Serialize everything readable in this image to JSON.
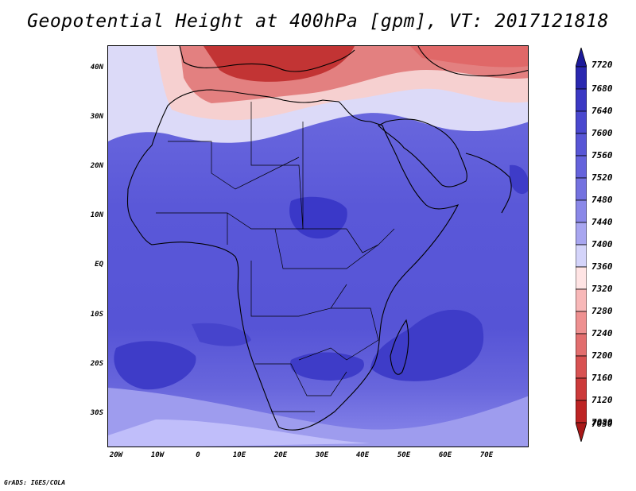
{
  "title": "Geopotential Height at 400hPa [gpm], VT: 2017121818",
  "credit": "GrADS: IGES/COLA",
  "map": {
    "lat_labels": [
      "40N",
      "30N",
      "20N",
      "10N",
      "EQ",
      "10S",
      "20S",
      "30S"
    ],
    "lon_labels": [
      "20W",
      "10W",
      "0",
      "10E",
      "20E",
      "30E",
      "40E",
      "50E",
      "60E",
      "70E"
    ]
  },
  "colorbar": {
    "levels": [
      "7720",
      "7680",
      "7640",
      "7600",
      "7560",
      "7520",
      "7480",
      "7440",
      "7400",
      "7360",
      "7320",
      "7280",
      "7240",
      "7200",
      "7160",
      "7120",
      "7080",
      "7030"
    ],
    "colors": [
      "#1c1a9a",
      "#2a28b0",
      "#3b39c4",
      "#4a48cf",
      "#5856d6",
      "#6563dc",
      "#7472e0",
      "#8a88e8",
      "#a8a6f0",
      "#d4d4fa",
      "#ffe4e4",
      "#f8b8b8",
      "#ee9090",
      "#e26e6e",
      "#d85252",
      "#cc3a3a",
      "#bd2424",
      "#a81818"
    ]
  },
  "colors": {
    "ocean_low": "#5a58d8",
    "high_anomaly": "#3a38c8",
    "low_anomaly": "#c02828"
  }
}
